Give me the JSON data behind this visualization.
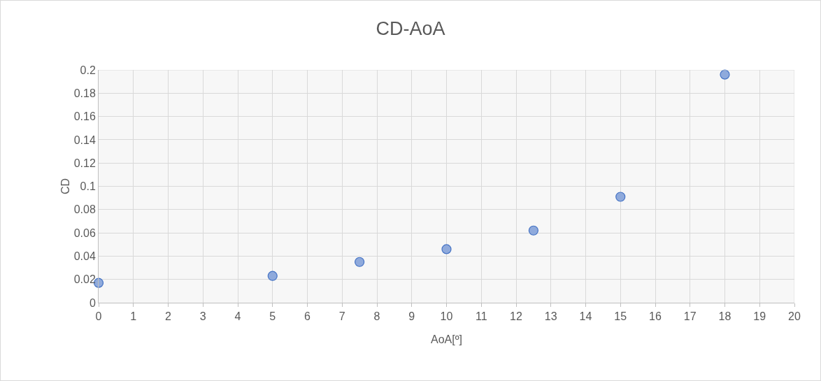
{
  "chart_data": {
    "type": "scatter",
    "title": "CD-AoA",
    "xlabel": "AoA[º]",
    "ylabel": "CD",
    "x": [
      0,
      5,
      7.5,
      10,
      12.5,
      15,
      18
    ],
    "series": [
      {
        "color": "#8faadc",
        "values": [
          0.017,
          0.023,
          0.035,
          0.046,
          0.062,
          0.091,
          0.196
        ]
      }
    ],
    "xlim": [
      0,
      20
    ],
    "xticks": [
      0,
      1,
      2,
      3,
      4,
      5,
      6,
      7,
      8,
      9,
      10,
      11,
      12,
      13,
      14,
      15,
      16,
      17,
      18,
      19,
      20
    ],
    "ylim": [
      0,
      0.2
    ],
    "yticks": [
      0,
      0.02,
      0.04,
      0.06,
      0.08,
      0.1,
      0.12,
      0.14,
      0.16,
      0.18,
      0.2
    ],
    "grid": true,
    "marker": "circle"
  }
}
